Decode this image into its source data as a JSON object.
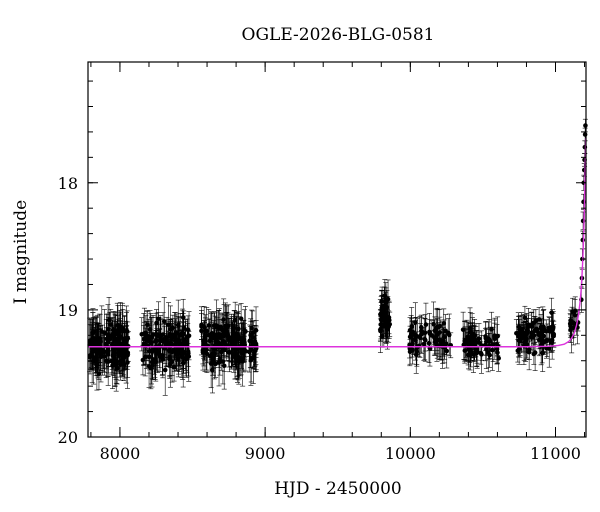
{
  "chart_data": {
    "type": "scatter",
    "title": "OGLE-2026-BLG-0581",
    "xlabel": "HJD - 2450000",
    "ylabel": "I magnitude",
    "xlim": [
      7780,
      11210
    ],
    "ylim": [
      20.0,
      17.05
    ],
    "y_inverted": true,
    "grid": false,
    "legend": "none",
    "colors": {
      "data": "#000000",
      "model": "#dd33dd",
      "axes": "#000000"
    },
    "x_ticks": [
      8000,
      9000,
      10000,
      11000
    ],
    "y_ticks": [
      18,
      19,
      20
    ],
    "x_minor_step": 200,
    "y_minor_step": 0.2,
    "baseline_mag": 19.29,
    "model": {
      "type": "microlensing-pspl",
      "baseline_mag": 19.29,
      "t0": 11208,
      "u0": 0.115,
      "tE": 38,
      "points": [
        [
          7780,
          19.29
        ],
        [
          10800,
          19.29
        ],
        [
          10950,
          19.287
        ],
        [
          11020,
          19.28
        ],
        [
          11060,
          19.27
        ],
        [
          11090,
          19.25
        ],
        [
          11110,
          19.225
        ],
        [
          11130,
          19.18
        ],
        [
          11145,
          19.12
        ],
        [
          11158,
          19.04
        ],
        [
          11168,
          18.95
        ],
        [
          11176,
          18.85
        ],
        [
          11182,
          18.74
        ],
        [
          11188,
          18.6
        ],
        [
          11193,
          18.45
        ],
        [
          11198,
          18.25
        ],
        [
          11202,
          18.05
        ],
        [
          11205,
          17.85
        ],
        [
          11207,
          17.72
        ],
        [
          11208,
          17.65
        ]
      ]
    },
    "data_clusters": [
      {
        "x_range": [
          7790,
          8060
        ],
        "mag_mean": 19.29,
        "mag_spread": 0.17,
        "err": 0.16,
        "count": 150
      },
      {
        "x_range": [
          8150,
          8480
        ],
        "mag_mean": 19.28,
        "mag_spread": 0.17,
        "err": 0.15,
        "count": 150
      },
      {
        "x_range": [
          8560,
          8870
        ],
        "mag_mean": 19.27,
        "mag_spread": 0.17,
        "err": 0.15,
        "count": 150
      },
      {
        "x_range": [
          8890,
          8940
        ],
        "mag_mean": 19.29,
        "mag_spread": 0.15,
        "err": 0.15,
        "count": 25
      },
      {
        "x_range": [
          9790,
          9860
        ],
        "mag_mean": 19.05,
        "mag_spread": 0.15,
        "err": 0.13,
        "count": 45
      },
      {
        "x_range": [
          9990,
          10280
        ],
        "mag_mean": 19.22,
        "mag_spread": 0.12,
        "err": 0.13,
        "count": 70
      },
      {
        "x_range": [
          10360,
          10620
        ],
        "mag_mean": 19.26,
        "mag_spread": 0.11,
        "err": 0.12,
        "count": 70
      },
      {
        "x_range": [
          10730,
          10990
        ],
        "mag_mean": 19.2,
        "mag_spread": 0.12,
        "err": 0.12,
        "count": 80
      },
      {
        "x_range": [
          11100,
          11160
        ],
        "mag_mean": 19.1,
        "mag_spread": 0.09,
        "err": 0.1,
        "count": 15
      }
    ],
    "peak_points": [
      [
        11178,
        18.92,
        0.1
      ],
      [
        11182,
        18.75,
        0.08
      ],
      [
        11185,
        18.6,
        0.08
      ],
      [
        11188,
        18.45,
        0.07
      ],
      [
        11190,
        18.3,
        0.07
      ],
      [
        11193,
        18.15,
        0.06
      ],
      [
        11195,
        18.0,
        0.06
      ],
      [
        11198,
        17.9,
        0.05
      ],
      [
        11200,
        17.82,
        0.05
      ],
      [
        11202,
        17.72,
        0.05
      ],
      [
        11204,
        17.62,
        0.05
      ],
      [
        11206,
        17.55,
        0.05
      ]
    ]
  }
}
